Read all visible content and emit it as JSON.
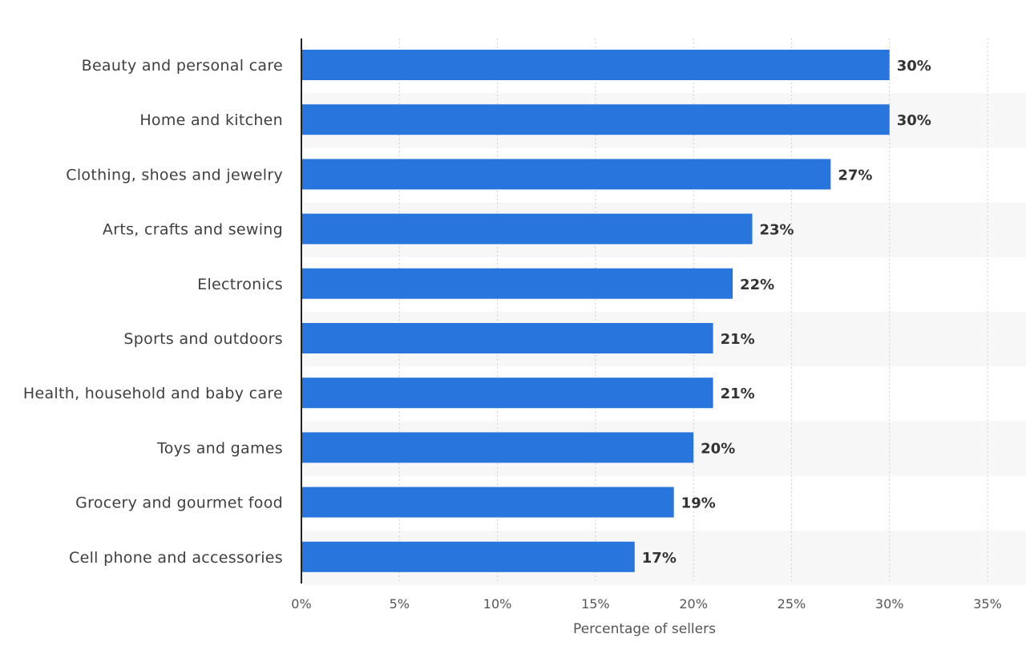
{
  "chart_data": {
    "type": "bar",
    "orientation": "horizontal",
    "categories": [
      "Beauty and personal care",
      "Home and kitchen",
      "Clothing, shoes and jewelry",
      "Arts, crafts and sewing",
      "Electronics",
      "Sports and outdoors",
      "Health, household and baby care",
      "Toys and games",
      "Grocery and gourmet food",
      "Cell phone and accessories"
    ],
    "values": [
      30,
      30,
      27,
      23,
      22,
      21,
      21,
      20,
      19,
      17
    ],
    "value_labels": [
      "30%",
      "30%",
      "27%",
      "23%",
      "22%",
      "21%",
      "21%",
      "20%",
      "19%",
      "17%"
    ],
    "xlabel": "Percentage of sellers",
    "ylabel": "",
    "xlim": [
      0,
      35
    ],
    "ticks": [
      0,
      5,
      10,
      15,
      20,
      25,
      30,
      35
    ],
    "tick_labels": [
      "0%",
      "5%",
      "10%",
      "15%",
      "20%",
      "25%",
      "30%",
      "35%"
    ],
    "grid": true,
    "bar_color": "#2876dd",
    "band_color": "#f7f7f7"
  }
}
